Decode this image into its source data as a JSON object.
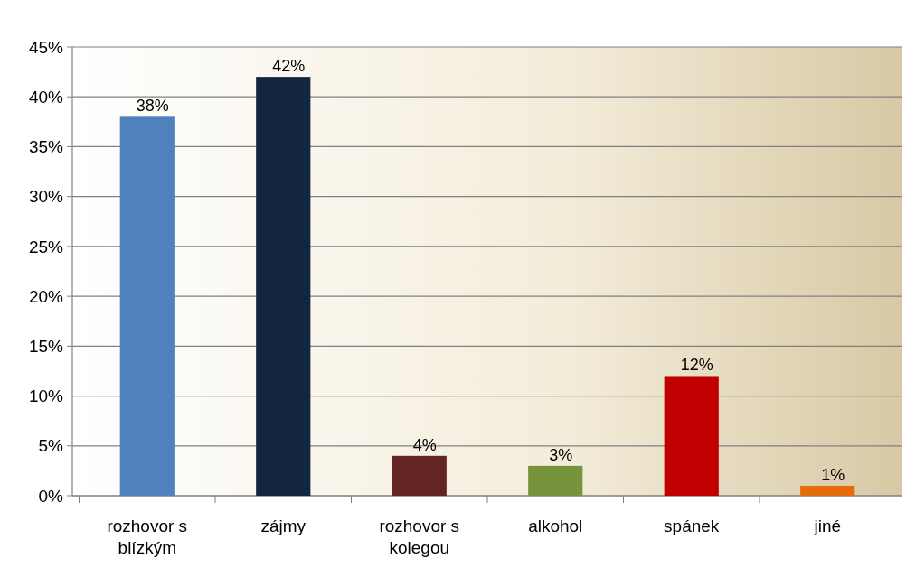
{
  "chart_data": {
    "type": "bar",
    "categories": [
      "rozhovor s blízkým",
      "zájmy",
      "rozhovor s kolegou",
      "alkohol",
      "spánek",
      "jiné"
    ],
    "values": [
      38,
      42,
      4,
      3,
      12,
      1
    ],
    "colors": [
      "#4f81bd",
      "#12263f",
      "#632523",
      "#77933c",
      "#c00000",
      "#e46c0a"
    ],
    "value_labels": [
      "38%",
      "42%",
      "4%",
      "3%",
      "12%",
      "1%"
    ],
    "ylim": [
      0,
      45
    ],
    "yticks": [
      {
        "value": 0,
        "label": "0%"
      },
      {
        "value": 5,
        "label": "5%"
      },
      {
        "value": 10,
        "label": "10%"
      },
      {
        "value": 15,
        "label": "15%"
      },
      {
        "value": 20,
        "label": "20%"
      },
      {
        "value": 25,
        "label": "25%"
      },
      {
        "value": 30,
        "label": "30%"
      },
      {
        "value": 35,
        "label": "35%"
      },
      {
        "value": 40,
        "label": "40%"
      },
      {
        "value": 45,
        "label": "45%"
      }
    ],
    "grid": true
  }
}
